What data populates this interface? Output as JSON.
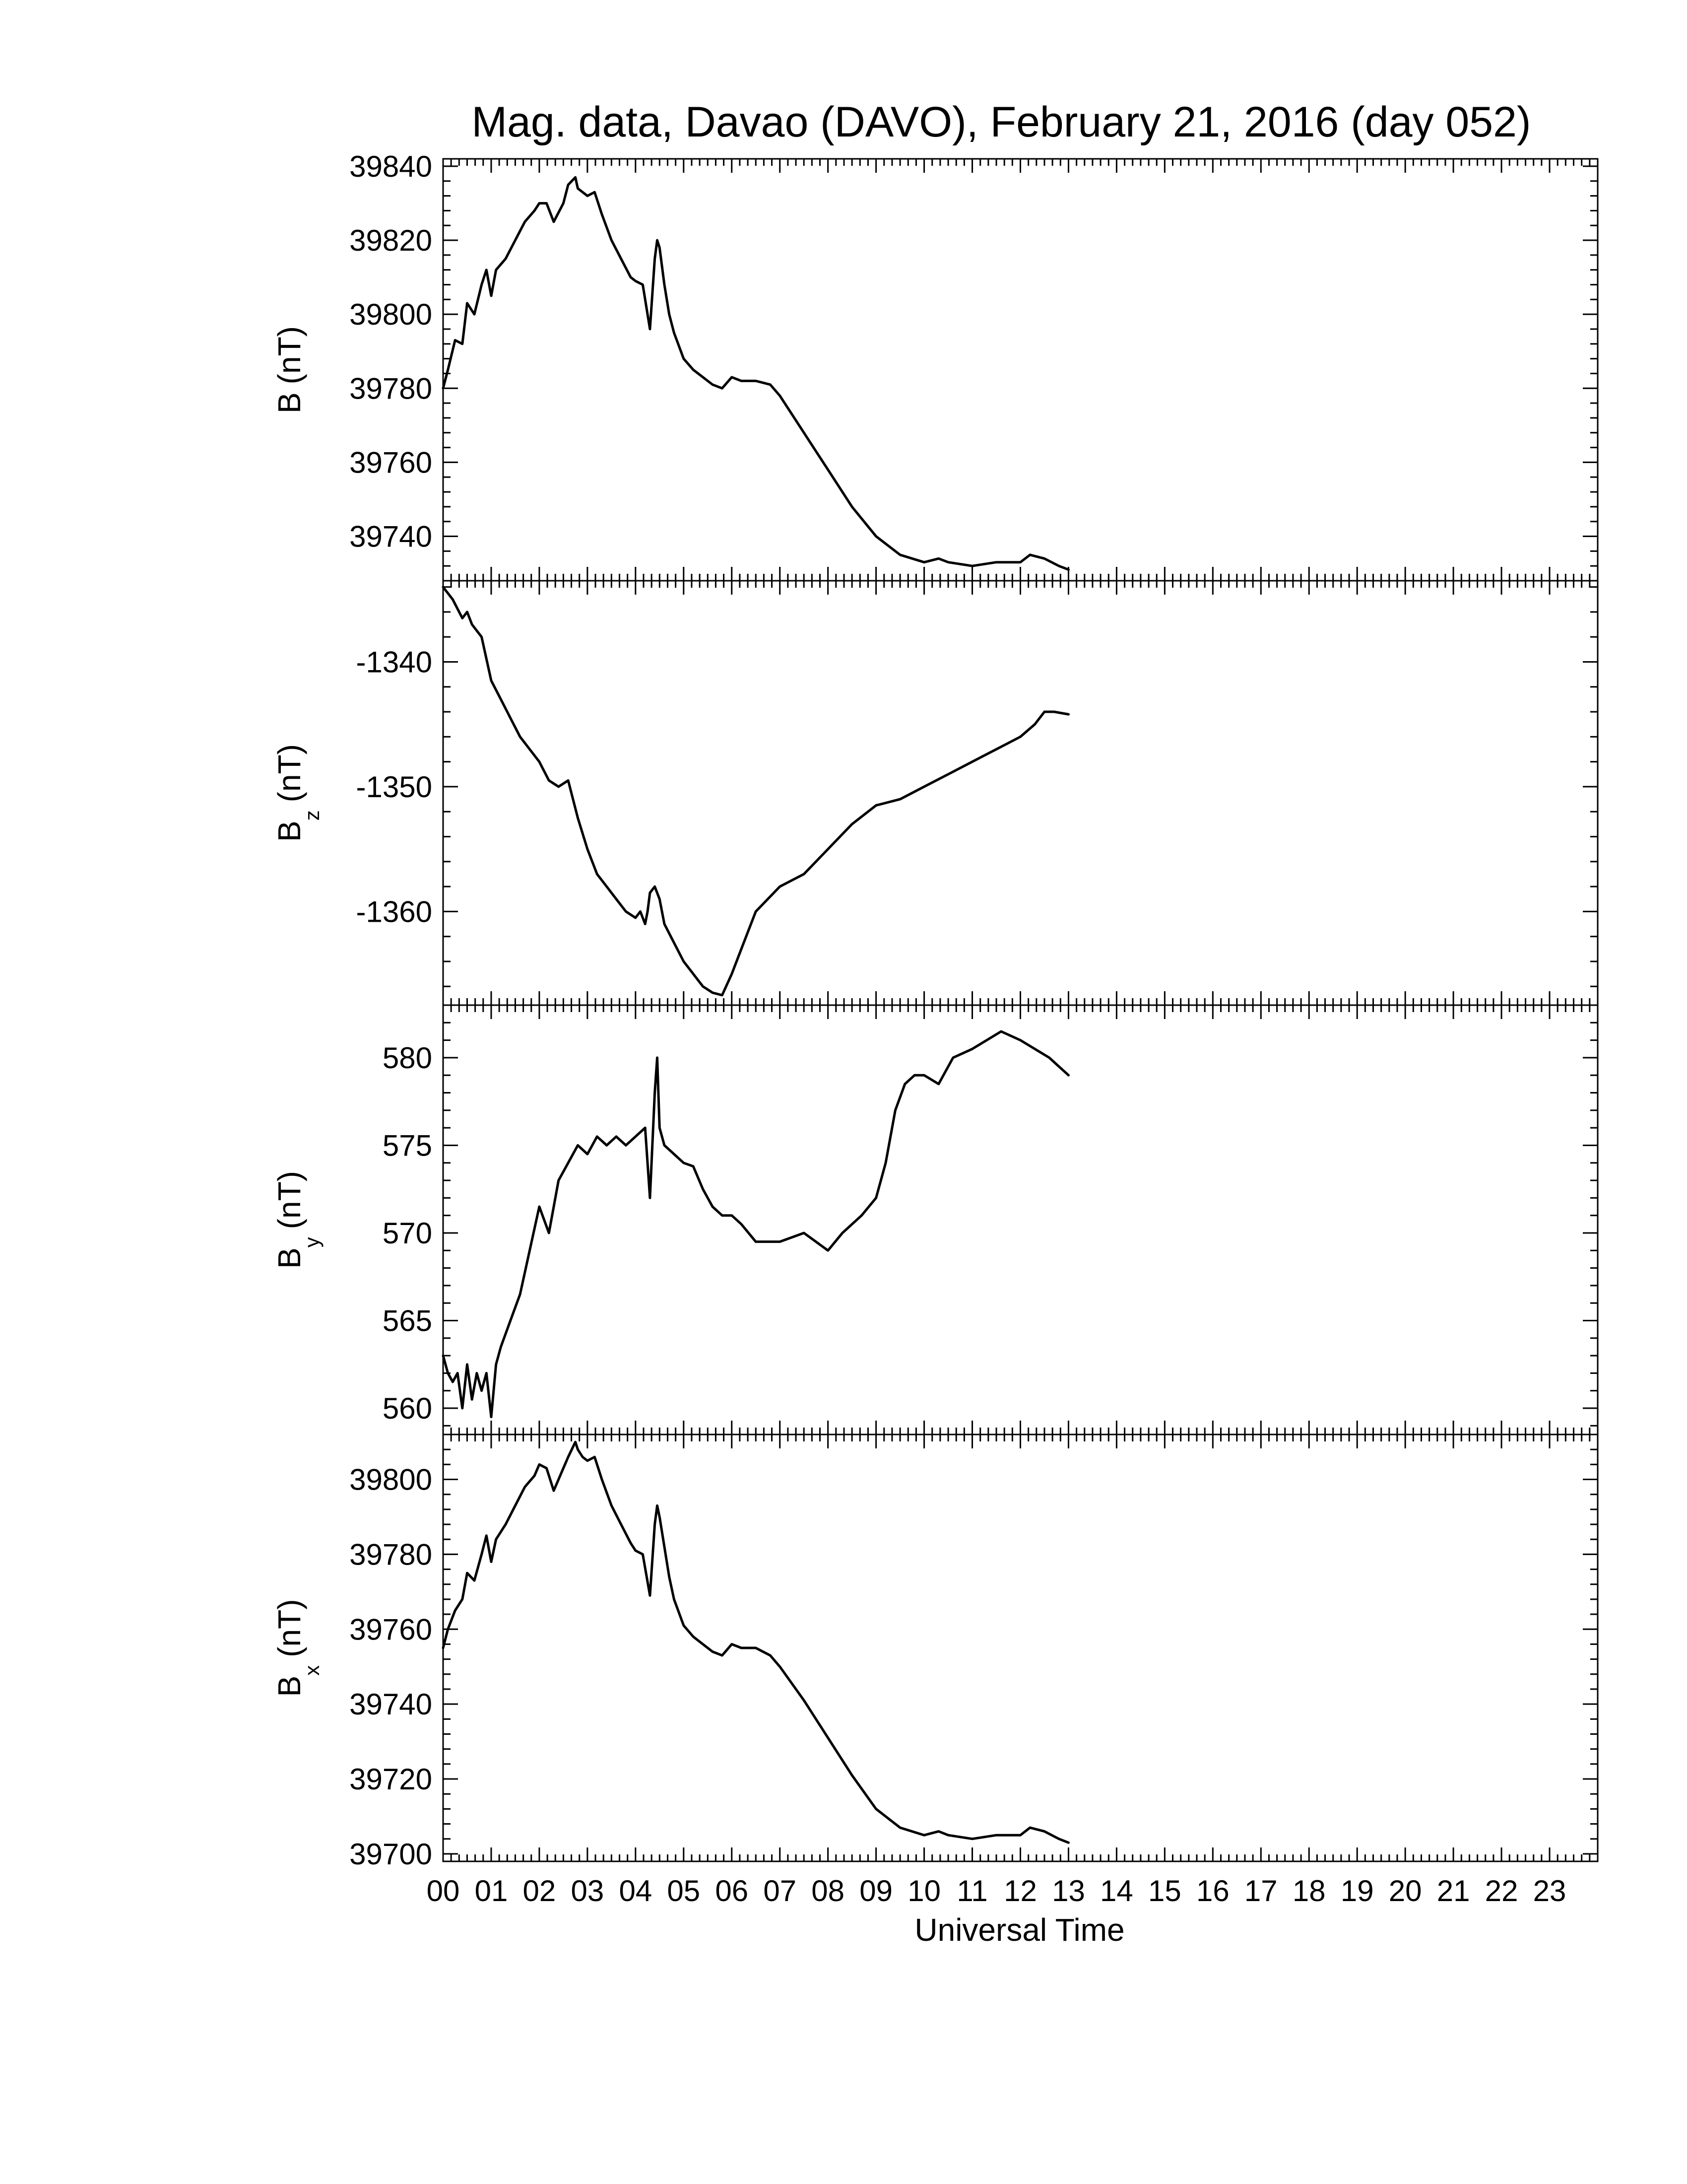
{
  "chart_data": {
    "type": "line",
    "title": "Mag. data, Davao (DAVO), February 21, 2016 (day 052)",
    "xlabel": "Universal Time",
    "xlim": [
      0,
      24
    ],
    "x_tick_labels": [
      "00",
      "01",
      "02",
      "03",
      "04",
      "05",
      "06",
      "07",
      "08",
      "09",
      "10",
      "11",
      "12",
      "13",
      "14",
      "15",
      "16",
      "17",
      "18",
      "19",
      "20",
      "21",
      "22",
      "23"
    ],
    "panels": [
      {
        "ylabel": "B (nT)",
        "ylabel_main": "B",
        "ylabel_sub": "",
        "ylabel_unit": "(nT)",
        "ylim": [
          39728,
          39842
        ],
        "yticks": [
          39740,
          39760,
          39780,
          39800,
          39820,
          39840
        ],
        "x": [
          0.0,
          0.1,
          0.25,
          0.4,
          0.5,
          0.65,
          0.8,
          0.9,
          1.0,
          1.1,
          1.3,
          1.5,
          1.7,
          1.9,
          2.0,
          2.15,
          2.3,
          2.5,
          2.6,
          2.75,
          2.8,
          2.9,
          3.0,
          3.15,
          3.3,
          3.5,
          3.7,
          3.9,
          4.0,
          4.15,
          4.3,
          4.4,
          4.45,
          4.5,
          4.6,
          4.7,
          4.8,
          5.0,
          5.2,
          5.4,
          5.6,
          5.8,
          6.0,
          6.2,
          6.5,
          6.8,
          7.0,
          7.5,
          8.0,
          8.5,
          9.0,
          9.5,
          10.0,
          10.3,
          10.5,
          11.0,
          11.5,
          12.0,
          12.2,
          12.5,
          12.8,
          13.0
        ],
        "y": [
          39780,
          39785,
          39793,
          39792,
          39803,
          39800,
          39808,
          39812,
          39805,
          39812,
          39815,
          39820,
          39825,
          39828,
          39830,
          39830,
          39825,
          39830,
          39835,
          39837,
          39834,
          39833,
          39832,
          39833,
          39827,
          39820,
          39815,
          39810,
          39809,
          39808,
          39796,
          39815,
          39820,
          39818,
          39808,
          39800,
          39795,
          39788,
          39785,
          39783,
          39781,
          39780,
          39783,
          39782,
          39782,
          39781,
          39778,
          39768,
          39758,
          39748,
          39740,
          39735,
          39733,
          39734,
          39733,
          39732,
          39733,
          39733,
          39735,
          39734,
          39732,
          39731
        ]
      },
      {
        "ylabel": "Bz (nT)",
        "ylabel_main": "B",
        "ylabel_sub": "z",
        "ylabel_unit": "(nT)",
        "ylim": [
          -1367.5,
          -1333.5
        ],
        "yticks": [
          -1340,
          -1350,
          -1360
        ],
        "x": [
          0.0,
          0.2,
          0.4,
          0.5,
          0.6,
          0.8,
          1.0,
          1.2,
          1.4,
          1.6,
          1.8,
          2.0,
          2.2,
          2.4,
          2.6,
          2.8,
          3.0,
          3.2,
          3.4,
          3.6,
          3.8,
          4.0,
          4.1,
          4.2,
          4.25,
          4.3,
          4.4,
          4.5,
          4.6,
          4.8,
          5.0,
          5.2,
          5.4,
          5.6,
          5.8,
          6.0,
          6.2,
          6.5,
          7.0,
          7.5,
          8.0,
          8.5,
          9.0,
          9.5,
          10.0,
          10.5,
          11.0,
          11.5,
          12.0,
          12.3,
          12.5,
          12.7,
          13.0
        ],
        "y": [
          -1334,
          -1335,
          -1336.5,
          -1336,
          -1337,
          -1338,
          -1341.5,
          -1343,
          -1344.5,
          -1346,
          -1347,
          -1348,
          -1349.5,
          -1350,
          -1349.5,
          -1352.5,
          -1355,
          -1357,
          -1358,
          -1359,
          -1360,
          -1360.5,
          -1360,
          -1361,
          -1360,
          -1358.5,
          -1358,
          -1359,
          -1361,
          -1362.5,
          -1364,
          -1365,
          -1366,
          -1366.5,
          -1366.7,
          -1365,
          -1363,
          -1360,
          -1358,
          -1357,
          -1355,
          -1353,
          -1351.5,
          -1351,
          -1350,
          -1349,
          -1348,
          -1347,
          -1346,
          -1345,
          -1344,
          -1344,
          -1344.2
        ]
      },
      {
        "ylabel": "By (nT)",
        "ylabel_main": "B",
        "ylabel_sub": "y",
        "ylabel_unit": "(nT)",
        "ylim": [
          558.5,
          583
        ],
        "yticks": [
          560,
          565,
          570,
          575,
          580
        ],
        "x": [
          0.0,
          0.1,
          0.2,
          0.3,
          0.4,
          0.5,
          0.6,
          0.7,
          0.8,
          0.9,
          1.0,
          1.1,
          1.2,
          1.4,
          1.6,
          1.8,
          2.0,
          2.2,
          2.4,
          2.6,
          2.8,
          3.0,
          3.2,
          3.4,
          3.6,
          3.8,
          4.0,
          4.2,
          4.3,
          4.4,
          4.45,
          4.5,
          4.6,
          4.8,
          5.0,
          5.2,
          5.4,
          5.6,
          5.8,
          6.0,
          6.2,
          6.5,
          7.0,
          7.5,
          8.0,
          8.3,
          8.7,
          9.0,
          9.2,
          9.4,
          9.6,
          9.8,
          10.0,
          10.3,
          10.6,
          11.0,
          11.3,
          11.6,
          12.0,
          12.3,
          12.6,
          12.8,
          13.0
        ],
        "y": [
          563,
          562,
          561.5,
          562,
          560,
          562.5,
          560.5,
          562,
          561,
          562,
          559.5,
          562.5,
          563.5,
          565,
          566.5,
          569,
          571.5,
          570,
          573,
          574,
          575,
          574.5,
          575.5,
          575,
          575.5,
          575,
          575.5,
          576,
          572,
          578,
          580,
          576,
          575,
          574.5,
          574,
          573.8,
          572.5,
          571.5,
          571,
          571,
          570.5,
          569.5,
          569.5,
          570,
          569,
          570,
          571,
          572,
          574,
          577,
          578.5,
          579,
          579,
          578.5,
          580,
          580.5,
          581,
          581.5,
          581,
          580.5,
          580,
          579.5,
          579
        ]
      },
      {
        "ylabel": "Bx (nT)",
        "ylabel_main": "B",
        "ylabel_sub": "x",
        "ylabel_unit": "(nT)",
        "ylim": [
          39698,
          39812
        ],
        "yticks": [
          39700,
          39720,
          39740,
          39760,
          39780,
          39800
        ],
        "x": [
          0.0,
          0.1,
          0.25,
          0.4,
          0.5,
          0.65,
          0.8,
          0.9,
          1.0,
          1.1,
          1.3,
          1.5,
          1.7,
          1.9,
          2.0,
          2.15,
          2.3,
          2.5,
          2.6,
          2.75,
          2.8,
          2.9,
          3.0,
          3.15,
          3.3,
          3.5,
          3.7,
          3.9,
          4.0,
          4.15,
          4.3,
          4.4,
          4.45,
          4.5,
          4.6,
          4.7,
          4.8,
          5.0,
          5.2,
          5.4,
          5.6,
          5.8,
          6.0,
          6.2,
          6.5,
          6.8,
          7.0,
          7.5,
          8.0,
          8.5,
          9.0,
          9.5,
          10.0,
          10.3,
          10.5,
          11.0,
          11.5,
          12.0,
          12.2,
          12.5,
          12.8,
          13.0
        ],
        "y": [
          39755,
          39760,
          39765,
          39768,
          39775,
          39773,
          39780,
          39785,
          39778,
          39784,
          39788,
          39793,
          39798,
          39801,
          39804,
          39803,
          39797,
          39803,
          39806,
          39810,
          39808,
          39806,
          39805,
          39806,
          39800,
          39793,
          39788,
          39783,
          39781,
          39780,
          39769,
          39788,
          39793,
          39790,
          39782,
          39774,
          39768,
          39761,
          39758,
          39756,
          39754,
          39753,
          39756,
          39755,
          39755,
          39753,
          39750,
          39741,
          39731,
          39721,
          39712,
          39707,
          39705,
          39706,
          39705,
          39704,
          39705,
          39705,
          39707,
          39706,
          39704,
          39703
        ]
      }
    ]
  }
}
